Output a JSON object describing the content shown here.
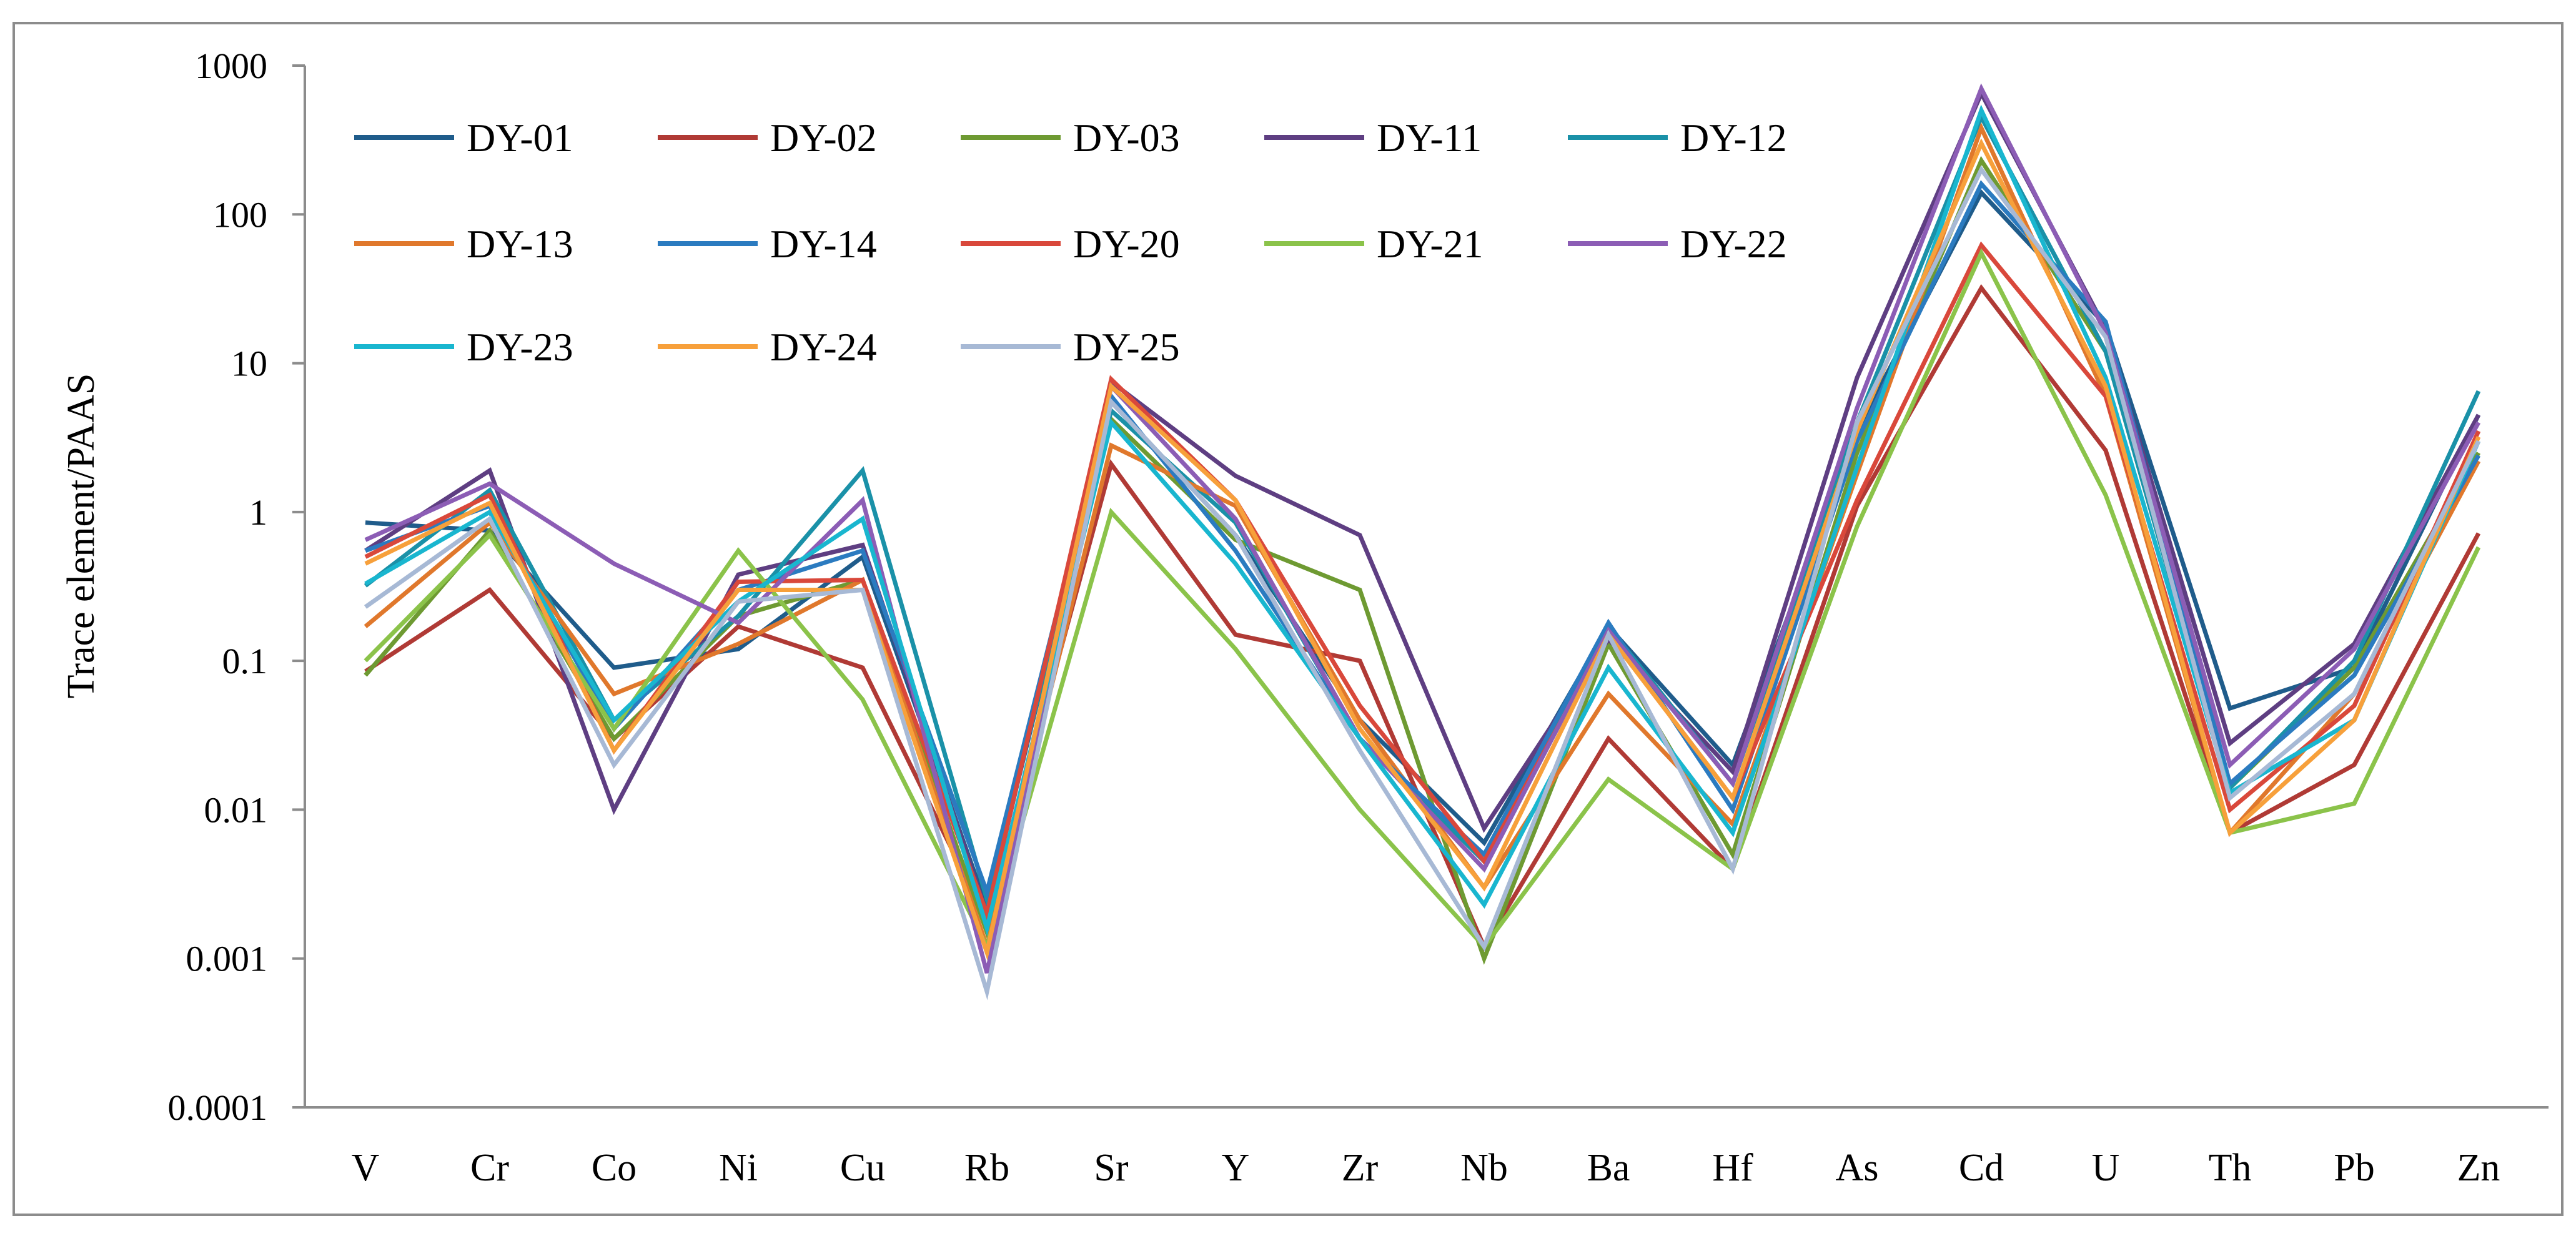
{
  "chart_data": {
    "type": "line",
    "title": "",
    "xlabel": "",
    "ylabel": "Trace element/PAAS",
    "yscale": "log",
    "ylim": [
      0.0001,
      1000
    ],
    "yticks": [
      "0.0001",
      "0.001",
      "0.01",
      "0.1",
      "1",
      "10",
      "100",
      "1000"
    ],
    "grid": false,
    "legend_position": "top-left",
    "categories": [
      "V",
      "Cr",
      "Co",
      "Ni",
      "Cu",
      "Rb",
      "Sr",
      "Y",
      "Zr",
      "Nb",
      "Ba",
      "Hf",
      "As",
      "Cd",
      "U",
      "Th",
      "Pb",
      "Zn"
    ],
    "series": [
      {
        "name": "DY-01",
        "color": "#1F5C8B",
        "values": [
          0.85,
          0.75,
          0.09,
          0.12,
          0.5,
          0.0022,
          5.5,
          0.7,
          0.04,
          0.006,
          0.17,
          0.02,
          3.5,
          140,
          18,
          0.048,
          0.09,
          4.5
        ]
      },
      {
        "name": "DY-02",
        "color": "#B03A35",
        "values": [
          0.085,
          0.3,
          0.03,
          0.17,
          0.09,
          0.0018,
          2.1,
          0.15,
          0.1,
          0.0012,
          0.03,
          0.004,
          1.1,
          32,
          2.6,
          0.007,
          0.02,
          0.72
        ]
      },
      {
        "name": "DY-03",
        "color": "#6E9A32",
        "values": [
          0.08,
          0.75,
          0.03,
          0.2,
          0.35,
          0.0015,
          4.2,
          0.65,
          0.3,
          0.001,
          0.13,
          0.005,
          2.5,
          230,
          12,
          0.014,
          0.09,
          2.5
        ]
      },
      {
        "name": "DY-11",
        "color": "#5E3E82",
        "values": [
          0.55,
          1.9,
          0.01,
          0.38,
          0.6,
          0.002,
          7.5,
          1.75,
          0.7,
          0.0075,
          0.14,
          0.018,
          8,
          650,
          17,
          0.028,
          0.13,
          4.5
        ]
      },
      {
        "name": "DY-12",
        "color": "#1A91A8",
        "values": [
          0.32,
          1.4,
          0.04,
          0.2,
          1.9,
          0.0025,
          4.8,
          0.85,
          0.03,
          0.0045,
          0.17,
          0.015,
          4,
          450,
          12,
          0.014,
          0.1,
          6.5
        ]
      },
      {
        "name": "DY-13",
        "color": "#E0782C",
        "values": [
          0.17,
          0.85,
          0.06,
          0.13,
          0.35,
          0.0012,
          2.8,
          1.1,
          0.04,
          0.003,
          0.06,
          0.008,
          1.8,
          380,
          6,
          0.007,
          0.06,
          2.2
        ]
      },
      {
        "name": "DY-14",
        "color": "#2B7BC0",
        "values": [
          0.55,
          1.1,
          0.035,
          0.3,
          0.55,
          0.0028,
          6,
          0.55,
          0.03,
          0.005,
          0.18,
          0.01,
          3,
          160,
          19,
          0.015,
          0.08,
          2.4
        ]
      },
      {
        "name": "DY-20",
        "color": "#D9483B",
        "values": [
          0.5,
          1.3,
          0.025,
          0.34,
          0.35,
          0.002,
          7.8,
          1.2,
          0.05,
          0.0045,
          0.15,
          0.012,
          1.2,
          62,
          6,
          0.01,
          0.05,
          3.5
        ]
      },
      {
        "name": "DY-21",
        "color": "#8BC34A",
        "values": [
          0.1,
          0.7,
          0.035,
          0.55,
          0.055,
          0.0012,
          1,
          0.12,
          0.01,
          0.0012,
          0.016,
          0.004,
          0.8,
          55,
          1.3,
          0.007,
          0.011,
          0.58
        ]
      },
      {
        "name": "DY-22",
        "color": "#8C5DB5",
        "values": [
          0.65,
          1.55,
          0.45,
          0.18,
          1.2,
          0.0008,
          7,
          0.9,
          0.03,
          0.004,
          0.16,
          0.015,
          5,
          700,
          16,
          0.02,
          0.12,
          4
        ]
      },
      {
        "name": "DY-23",
        "color": "#19B6CF",
        "values": [
          0.33,
          1.0,
          0.04,
          0.25,
          0.9,
          0.0016,
          4,
          0.45,
          0.03,
          0.0023,
          0.09,
          0.007,
          2,
          500,
          8,
          0.013,
          0.04,
          3
        ]
      },
      {
        "name": "DY-24",
        "color": "#F7A03B",
        "values": [
          0.45,
          1.15,
          0.025,
          0.3,
          0.3,
          0.0011,
          7,
          1.2,
          0.035,
          0.003,
          0.15,
          0.012,
          3.5,
          300,
          7,
          0.007,
          0.04,
          3.2
        ]
      },
      {
        "name": "DY-25",
        "color": "#A7B9D5",
        "values": [
          0.23,
          0.9,
          0.02,
          0.25,
          0.3,
          0.0006,
          5.5,
          0.7,
          0.025,
          0.0012,
          0.15,
          0.004,
          4,
          200,
          15,
          0.012,
          0.06,
          3
        ]
      }
    ]
  }
}
